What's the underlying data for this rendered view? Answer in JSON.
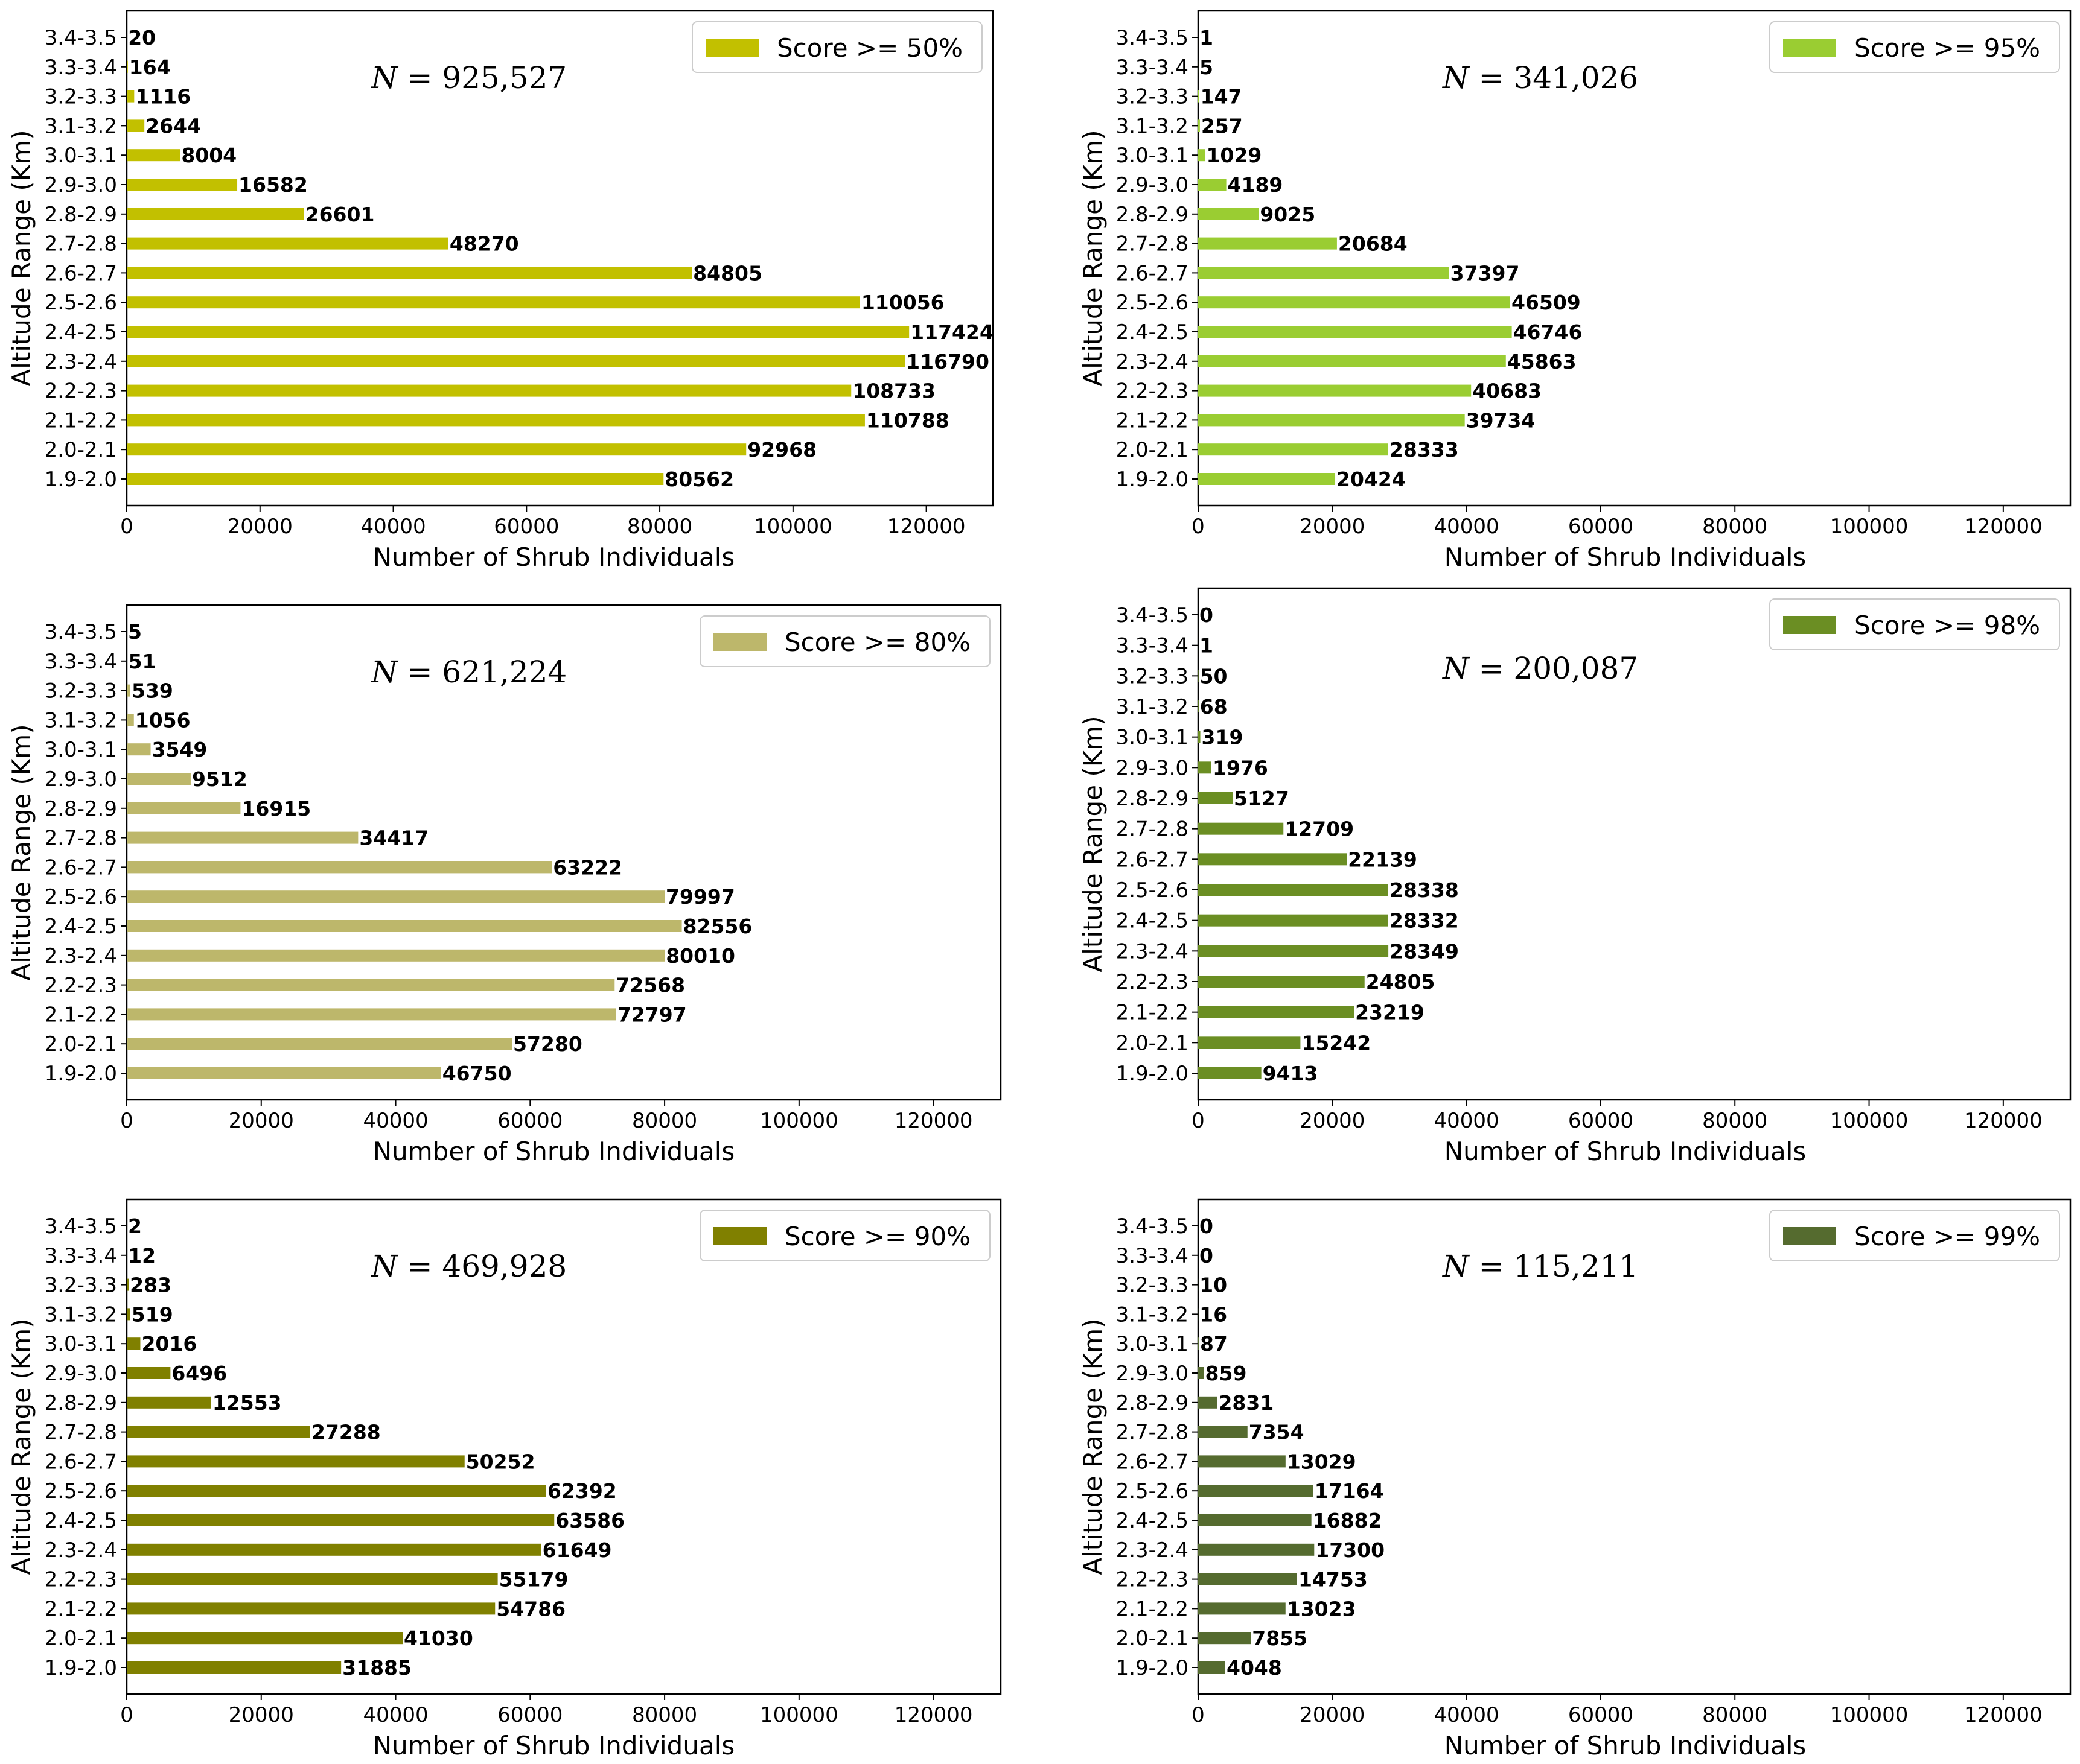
{
  "chart_data": [
    {
      "type": "bar",
      "orientation": "horizontal",
      "legend": "Score >= 50%",
      "legend_position": "top-right",
      "annotation_prefix": "N",
      "annotation_value": "925,527",
      "color": "#c2c000",
      "xlabel": "Number of Shrub Individuals",
      "ylabel": "Altitude Range (Km)",
      "xlim": [
        0,
        130000
      ],
      "xticks": [
        "0",
        "20000",
        "40000",
        "60000",
        "80000",
        "100000",
        "120000"
      ],
      "categories": [
        "1.9-2.0",
        "2.0-2.1",
        "2.1-2.2",
        "2.2-2.3",
        "2.3-2.4",
        "2.4-2.5",
        "2.5-2.6",
        "2.6-2.7",
        "2.7-2.8",
        "2.8-2.9",
        "2.9-3.0",
        "3.0-3.1",
        "3.1-3.2",
        "3.2-3.3",
        "3.3-3.4",
        "3.4-3.5"
      ],
      "values": [
        80562,
        92968,
        110788,
        108733,
        116790,
        117424,
        110056,
        84805,
        48270,
        26601,
        16582,
        8004,
        2644,
        1116,
        164,
        20
      ]
    },
    {
      "type": "bar",
      "orientation": "horizontal",
      "legend": "Score >= 95%",
      "legend_position": "top-right",
      "annotation_prefix": "N",
      "annotation_value": "341,026",
      "color": "#9acd32",
      "xlabel": "Number of Shrub Individuals",
      "ylabel": "Altitude Range (Km)",
      "xlim": [
        0,
        130000
      ],
      "xticks": [
        "0",
        "20000",
        "40000",
        "60000",
        "80000",
        "100000",
        "120000"
      ],
      "categories": [
        "1.9-2.0",
        "2.0-2.1",
        "2.1-2.2",
        "2.2-2.3",
        "2.3-2.4",
        "2.4-2.5",
        "2.5-2.6",
        "2.6-2.7",
        "2.7-2.8",
        "2.8-2.9",
        "2.9-3.0",
        "3.0-3.1",
        "3.1-3.2",
        "3.2-3.3",
        "3.3-3.4",
        "3.4-3.5"
      ],
      "values": [
        20424,
        28333,
        39734,
        40683,
        45863,
        46746,
        46509,
        37397,
        20684,
        9025,
        4189,
        1029,
        257,
        147,
        5,
        1
      ]
    },
    {
      "type": "bar",
      "orientation": "horizontal",
      "legend": "Score >= 80%",
      "legend_position": "top-right",
      "annotation_prefix": "N",
      "annotation_value": "621,224",
      "color": "#bdb76b",
      "xlabel": "Number of Shrub Individuals",
      "ylabel": "Altitude Range (Km)",
      "xlim": [
        0,
        130000
      ],
      "xticks": [
        "0",
        "20000",
        "40000",
        "60000",
        "80000",
        "100000",
        "120000"
      ],
      "categories": [
        "1.9-2.0",
        "2.0-2.1",
        "2.1-2.2",
        "2.2-2.3",
        "2.3-2.4",
        "2.4-2.5",
        "2.5-2.6",
        "2.6-2.7",
        "2.7-2.8",
        "2.8-2.9",
        "2.9-3.0",
        "3.0-3.1",
        "3.1-3.2",
        "3.2-3.3",
        "3.3-3.4",
        "3.4-3.5"
      ],
      "values": [
        46750,
        57280,
        72797,
        72568,
        80010,
        82556,
        79997,
        63222,
        34417,
        16915,
        9512,
        3549,
        1056,
        539,
        51,
        5
      ]
    },
    {
      "type": "bar",
      "orientation": "horizontal",
      "legend": "Score >= 98%",
      "legend_position": "top-right",
      "annotation_prefix": "N",
      "annotation_value": "200,087",
      "color": "#6b8e23",
      "xlabel": "Number of Shrub Individuals",
      "ylabel": "Altitude Range (Km)",
      "xlim": [
        0,
        130000
      ],
      "xticks": [
        "0",
        "20000",
        "40000",
        "60000",
        "80000",
        "100000",
        "120000"
      ],
      "categories": [
        "1.9-2.0",
        "2.0-2.1",
        "2.1-2.2",
        "2.2-2.3",
        "2.3-2.4",
        "2.4-2.5",
        "2.5-2.6",
        "2.6-2.7",
        "2.7-2.8",
        "2.8-2.9",
        "2.9-3.0",
        "3.0-3.1",
        "3.1-3.2",
        "3.2-3.3",
        "3.3-3.4",
        "3.4-3.5"
      ],
      "values": [
        9413,
        15242,
        23219,
        24805,
        28349,
        28332,
        28338,
        22139,
        12709,
        5127,
        1976,
        319,
        68,
        50,
        1,
        0
      ]
    },
    {
      "type": "bar",
      "orientation": "horizontal",
      "legend": "Score >= 90%",
      "legend_position": "top-right",
      "annotation_prefix": "N",
      "annotation_value": "469,928",
      "color": "#808000",
      "xlabel": "Number of Shrub Individuals",
      "ylabel": "Altitude Range (Km)",
      "xlim": [
        0,
        130000
      ],
      "xticks": [
        "0",
        "20000",
        "40000",
        "60000",
        "80000",
        "100000",
        "120000"
      ],
      "categories": [
        "1.9-2.0",
        "2.0-2.1",
        "2.1-2.2",
        "2.2-2.3",
        "2.3-2.4",
        "2.4-2.5",
        "2.5-2.6",
        "2.6-2.7",
        "2.7-2.8",
        "2.8-2.9",
        "2.9-3.0",
        "3.0-3.1",
        "3.1-3.2",
        "3.2-3.3",
        "3.3-3.4",
        "3.4-3.5"
      ],
      "values": [
        31885,
        41030,
        54786,
        55179,
        61649,
        63586,
        62392,
        50252,
        27288,
        12553,
        6496,
        2016,
        519,
        283,
        12,
        2
      ]
    },
    {
      "type": "bar",
      "orientation": "horizontal",
      "legend": "Score >= 99%",
      "legend_position": "top-right",
      "annotation_prefix": "N",
      "annotation_value": "115,211",
      "color": "#556b2f",
      "xlabel": "Number of Shrub Individuals",
      "ylabel": "Altitude Range (Km)",
      "xlim": [
        0,
        130000
      ],
      "xticks": [
        "0",
        "20000",
        "40000",
        "60000",
        "80000",
        "100000",
        "120000"
      ],
      "categories": [
        "1.9-2.0",
        "2.0-2.1",
        "2.1-2.2",
        "2.2-2.3",
        "2.3-2.4",
        "2.4-2.5",
        "2.5-2.6",
        "2.6-2.7",
        "2.7-2.8",
        "2.8-2.9",
        "2.9-3.0",
        "3.0-3.1",
        "3.1-3.2",
        "3.2-3.3",
        "3.3-3.4",
        "3.4-3.5"
      ],
      "values": [
        4048,
        7855,
        13023,
        14753,
        17300,
        16882,
        17164,
        13029,
        7354,
        2831,
        859,
        87,
        16,
        10,
        0,
        0
      ]
    }
  ]
}
